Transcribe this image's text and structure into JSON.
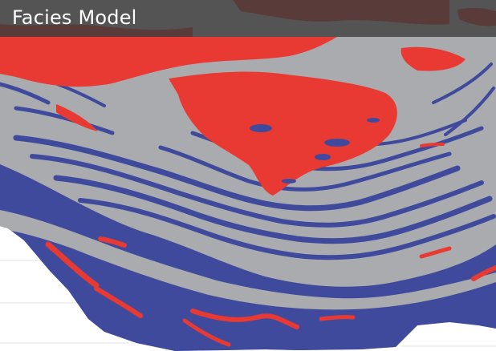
{
  "title": "Facies Model",
  "colors": {
    "background": "#ffffff",
    "gray_facies": "#a9abae",
    "red_facies": "#e83a32",
    "blue_facies": "#3f4a9c",
    "dark_red_facies": "#c23229",
    "title_bar": "#3e3e3e",
    "title_text": "#ffffff"
  }
}
